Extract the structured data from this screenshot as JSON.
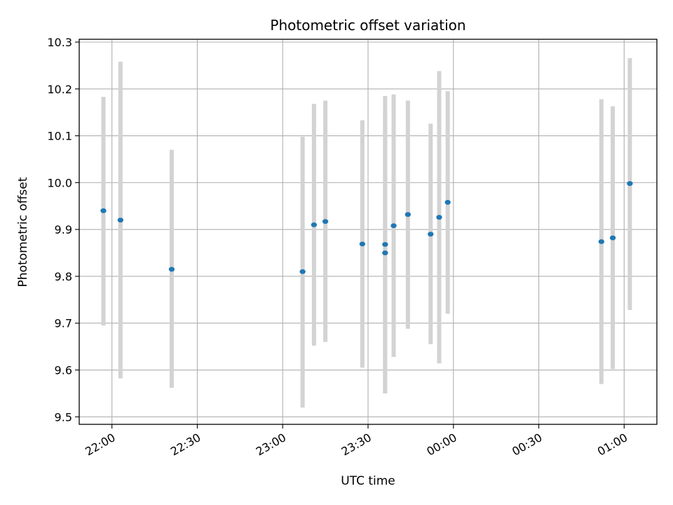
{
  "chart_data": {
    "type": "scatter",
    "title": "Photometric offset variation",
    "xlabel": "UTC time",
    "ylabel": "Photometric offset",
    "x_ticks": [
      "22:00",
      "22:30",
      "23:00",
      "23:30",
      "00:00",
      "00:30",
      "01:00"
    ],
    "y_ticks": [
      "9.5",
      "9.6",
      "9.7",
      "9.8",
      "9.9",
      "10.0",
      "10.1",
      "10.2",
      "10.3"
    ],
    "x_tick_minutes": [
      0,
      30,
      60,
      90,
      120,
      150,
      180
    ],
    "xlim_minutes": [
      -11.5,
      191.5
    ],
    "ylim": [
      9.484,
      10.306
    ],
    "grid": true,
    "marker_color": "#1f77b4",
    "errorbar_color": "#d3d3d3",
    "series": [
      {
        "points": [
          {
            "t": "21:57",
            "y": 9.94,
            "ylow": 9.695,
            "yhigh": 10.183
          },
          {
            "t": "22:03",
            "y": 9.92,
            "ylow": 9.582,
            "yhigh": 10.258
          },
          {
            "t": "22:21",
            "y": 9.815,
            "ylow": 9.562,
            "yhigh": 10.07
          },
          {
            "t": "23:07",
            "y": 9.81,
            "ylow": 9.52,
            "yhigh": 10.098
          },
          {
            "t": "23:11",
            "y": 9.91,
            "ylow": 9.652,
            "yhigh": 10.168
          },
          {
            "t": "23:15",
            "y": 9.917,
            "ylow": 9.66,
            "yhigh": 10.175
          },
          {
            "t": "23:28",
            "y": 9.869,
            "ylow": 9.605,
            "yhigh": 10.133
          },
          {
            "t": "23:36",
            "y": 9.868,
            "ylow": 9.55,
            "yhigh": 10.185
          },
          {
            "t": "23:36",
            "y": 9.85,
            "ylow": 9.55,
            "yhigh": 10.15
          },
          {
            "t": "23:39",
            "y": 9.908,
            "ylow": 9.628,
            "yhigh": 10.188
          },
          {
            "t": "23:44",
            "y": 9.932,
            "ylow": 9.688,
            "yhigh": 10.175
          },
          {
            "t": "23:52",
            "y": 9.89,
            "ylow": 9.655,
            "yhigh": 10.126
          },
          {
            "t": "23:55",
            "y": 9.926,
            "ylow": 9.614,
            "yhigh": 10.238
          },
          {
            "t": "23:58",
            "y": 9.958,
            "ylow": 9.72,
            "yhigh": 10.195
          },
          {
            "t": "00:52",
            "y": 9.874,
            "ylow": 9.57,
            "yhigh": 10.178
          },
          {
            "t": "00:56",
            "y": 9.882,
            "ylow": 9.602,
            "yhigh": 10.163
          },
          {
            "t": "01:02",
            "y": 9.998,
            "ylow": 9.728,
            "yhigh": 10.266
          }
        ]
      }
    ]
  }
}
